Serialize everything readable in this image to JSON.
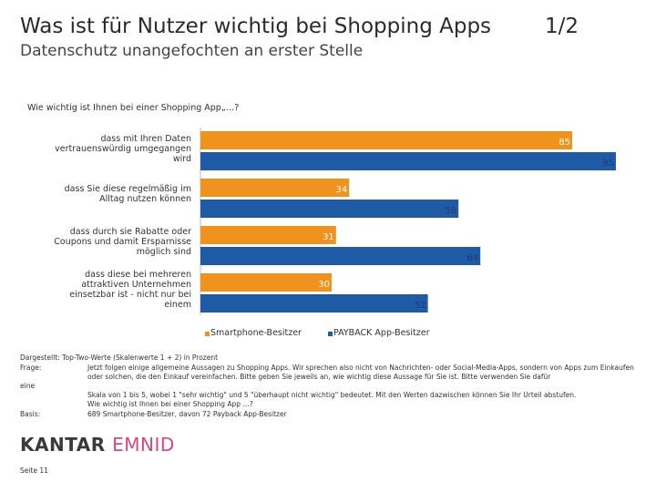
{
  "header": {
    "title": "Was ist für Nutzer wichtig bei Shopping Apps",
    "page": "1/2",
    "subtitle": "Datenschutz unangefochten an erster Stelle"
  },
  "question": "Wie wichtig ist Ihnen bei einer Shopping App„…?",
  "chart_data": {
    "type": "bar",
    "orientation": "horizontal",
    "categories": [
      "dass mit Ihren Daten vertrauenswürdig umgegangen wird",
      "dass Sie diese regelmäßig im Alltag nutzen können",
      "dass durch sie Rabatte oder Coupons und damit Ersparnisse möglich sind",
      "dass diese bei mehreren attraktiven Unternehmen einsetzbar ist - nicht nur bei einem"
    ],
    "series": [
      {
        "name": "Smartphone-Besitzer",
        "color": "#f0921e",
        "values": [
          85,
          34,
          31,
          30
        ]
      },
      {
        "name": "PAYBACK App-Besitzer",
        "color": "#1f5aa6",
        "values": [
          95,
          59,
          64,
          52
        ]
      }
    ],
    "xlim": [
      0,
      100
    ],
    "legend": "bottom"
  },
  "footnotes": {
    "dargestellt": "Dargestellt: Top-Two-Werte (Skalenwerte 1 + 2) in Prozent",
    "frage_label": "Frage:",
    "frage_text": "Jetzt folgen einige allgemeine Aussagen zu Shopping Apps. Wir sprechen also nicht von Nachrichten- oder Social-Media-Apps, sondern von Apps zum Einkaufen oder solchen, die den Einkauf vereinfachen. Bitte geben Sie jeweils an, wie wichtig diese Aussage für Sie ist. Bitte verwenden Sie dafür",
    "eine_label": "eine",
    "skala_text": "Skala von 1 bis 5, wobei 1 \"sehr wichtig\" und 5 \"überhaupt nicht wichtig\" bedeutet. Mit den Werten dazwischen können Sie Ihr Urteil abstufen.",
    "wie_text": "Wie wichtig ist Ihnen bei einer Shopping App …?",
    "basis_label": "Basis:",
    "basis_text": "689 Smartphone-Besitzer, davon 72 Payback App-Besitzer"
  },
  "brand": {
    "kantar": "KANTAR",
    "emnid": "EMNID"
  },
  "footer": {
    "page": "Seite 11"
  }
}
